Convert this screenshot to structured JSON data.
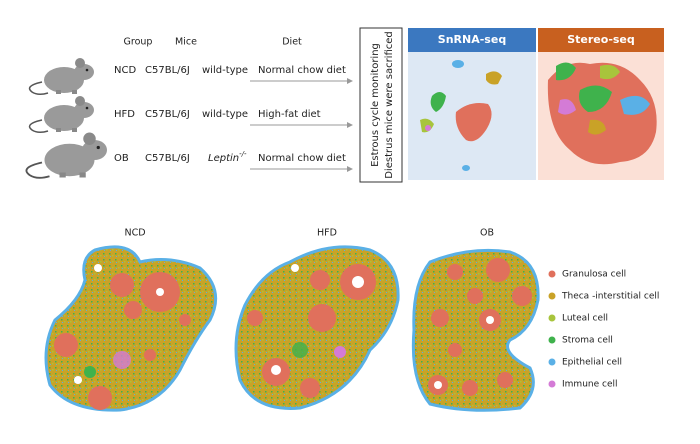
{
  "table": {
    "headers": [
      "Group",
      "Mice",
      "Diet"
    ],
    "rows": [
      {
        "group": "NCD",
        "strain": "C57BL/6J",
        "genotype": "wild-type",
        "diet": "Normal chow diet"
      },
      {
        "group": "HFD",
        "strain": "C57BL/6J",
        "genotype": "wild-type",
        "diet": "High-fat diet"
      },
      {
        "group": "OB",
        "strain": "C57BL/6J",
        "genotype": "Leptin",
        "genotype_sup": "-/-",
        "diet": "Normal chow diet"
      }
    ]
  },
  "procedure": [
    "Estrous cycle monitoring",
    "Diestrus mice were sacrificed"
  ],
  "panels": [
    "SnRNA-seq",
    "Stereo-seq"
  ],
  "sections": [
    "NCD",
    "HFD",
    "OB"
  ],
  "legend": [
    {
      "label": "Granulosa cell",
      "color": "#e0705c"
    },
    {
      "label": "Theca -interstitial cell",
      "color": "#c9a227"
    },
    {
      "label": "Luteal cell",
      "color": "#a8c43c"
    },
    {
      "label": "Stroma cell",
      "color": "#3fb24c"
    },
    {
      "label": "Epithelial cell",
      "color": "#5ab0e6"
    },
    {
      "label": "Immune cell",
      "color": "#d47bd6"
    }
  ]
}
